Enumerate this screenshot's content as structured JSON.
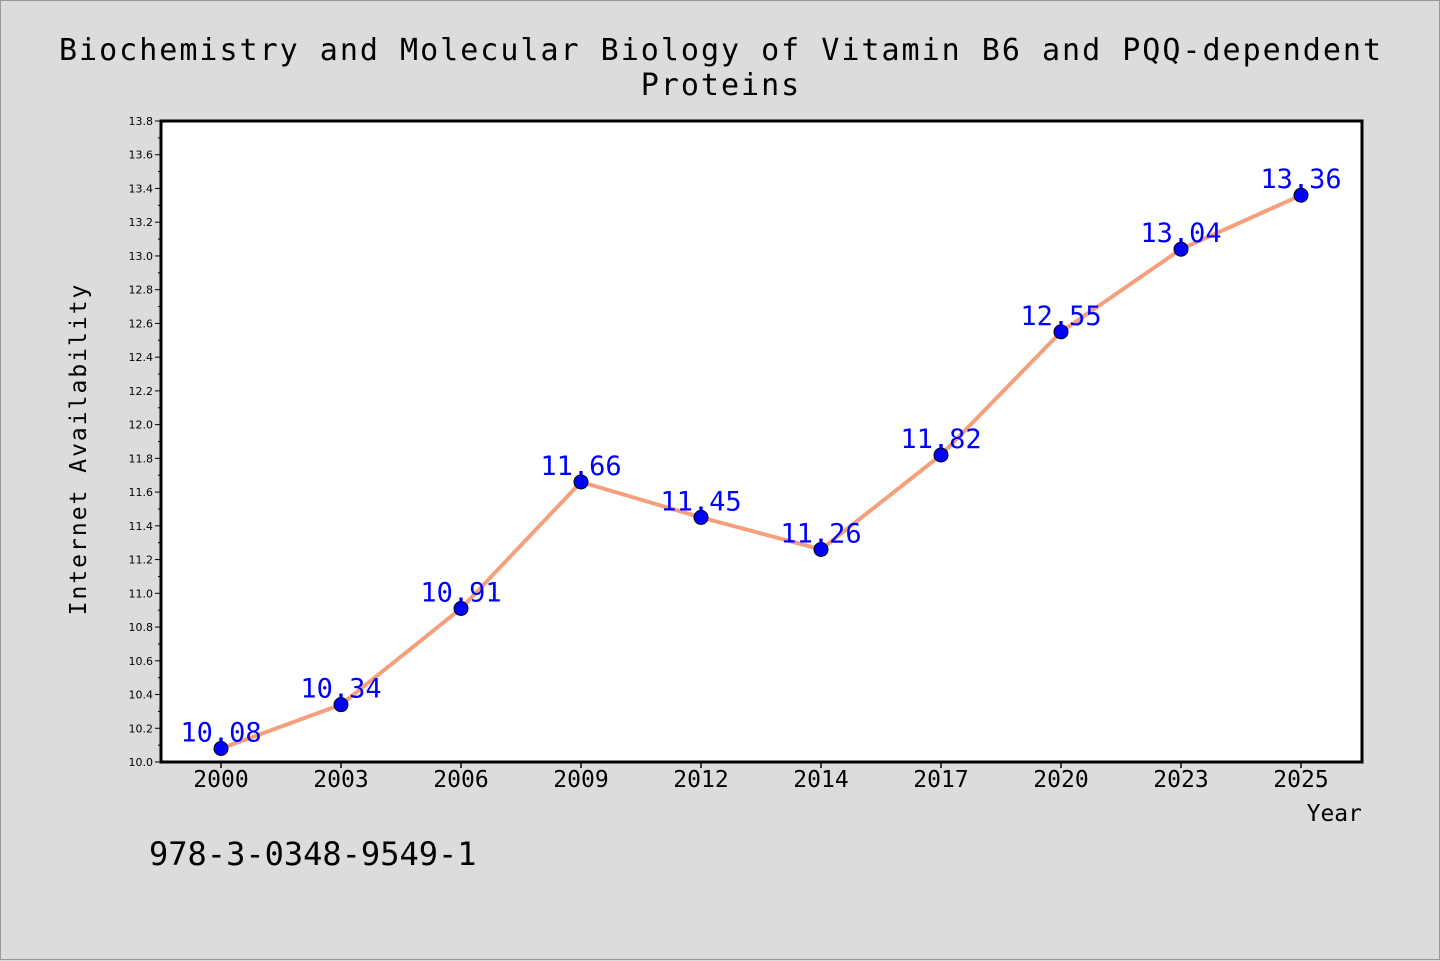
{
  "chart_data": {
    "type": "line",
    "title": "Biochemistry and Molecular Biology of Vitamin B6 and PQQ-dependent Proteins",
    "xlabel": "Year",
    "ylabel": "Internet Availability",
    "categories": [
      "2000",
      "2003",
      "2006",
      "2009",
      "2012",
      "2014",
      "2017",
      "2020",
      "2023",
      "2025"
    ],
    "values": [
      10.08,
      10.34,
      10.91,
      11.66,
      11.45,
      11.26,
      11.82,
      12.55,
      13.04,
      13.36
    ],
    "data_labels": [
      "10.08",
      "10.34",
      "10.91",
      "11.66",
      "11.45",
      "11.26",
      "11.82",
      "12.55",
      "13.04",
      "13.36"
    ],
    "ylim": [
      10.0,
      13.8
    ],
    "yticks": [
      "10.0",
      "10.2",
      "10.4",
      "10.6",
      "10.8",
      "11.0",
      "11.2",
      "11.4",
      "11.6",
      "11.8",
      "12.0",
      "12.2",
      "12.4",
      "12.6",
      "12.8",
      "13.0",
      "13.2",
      "13.4",
      "13.6",
      "13.8"
    ],
    "grid": false,
    "line_color": "#f4a07c",
    "marker_color": "#0000ff",
    "label_color": "#0000ff"
  },
  "footer": {
    "isbn": "978-3-0348-9549-1"
  }
}
